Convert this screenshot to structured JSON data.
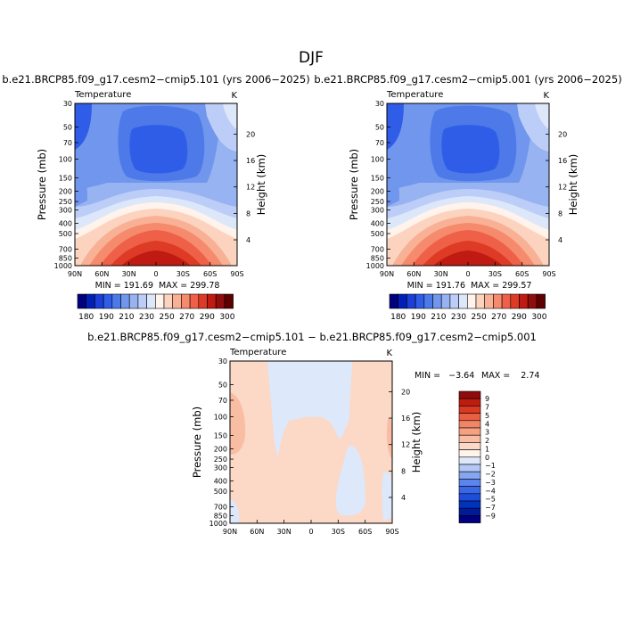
{
  "figure": {
    "title": "DJF"
  },
  "colors": {
    "abs_scale": [
      "#00007f",
      "#0020b5",
      "#1c3fd9",
      "#2f5de8",
      "#4d7ae8",
      "#7096ed",
      "#98b3f2",
      "#bccdf7",
      "#dde7fa",
      "#fff3eb",
      "#fcd3be",
      "#f9b195",
      "#f58a6d",
      "#ee6148",
      "#de3b27",
      "#bf1b12",
      "#8f0d0c",
      "#5e0000"
    ],
    "diff_scale": [
      "#00007f",
      "#001a99",
      "#0033bb",
      "#1f4ddb",
      "#3a66e8",
      "#5b84ec",
      "#87a6f1",
      "#b3c8f5",
      "#dde8fa",
      "#fff3eb",
      "#fcd8c6",
      "#f9bda3",
      "#f6a182",
      "#f28566",
      "#ea5f40",
      "#d93a21",
      "#bd1d0f",
      "#900c0c"
    ]
  },
  "chart_data": [
    {
      "type": "heatmap",
      "title": "b.e21.BRCP85.f09_g17.cesm2−cmip5.101 (yrs 2006−2025)",
      "subtitle": "Temperature",
      "units": "K",
      "xlabel": "",
      "ylabel": "Pressure (mb)",
      "y2label": "Height (km)",
      "x_ticks": [
        "90N",
        "60N",
        "30N",
        "0",
        "30S",
        "60S",
        "90S"
      ],
      "y_ticks": [
        "30",
        "50",
        "70",
        "100",
        "150",
        "200",
        "250",
        "300",
        "400",
        "500",
        "700",
        "850",
        "1000"
      ],
      "y2_ticks": [
        "20",
        "16",
        "12",
        "8",
        "4"
      ],
      "min_label": "MIN = 191.69",
      "max_label": "MAX = 299.78",
      "min": 191.69,
      "max": 299.78,
      "colorbar_labels": [
        "180",
        "190",
        "210",
        "230",
        "250",
        "270",
        "290",
        "300"
      ]
    },
    {
      "type": "heatmap",
      "title": "b.e21.BRCP85.f09_g17.cesm2−cmip5.001 (yrs 2006−2025)",
      "subtitle": "Temperature",
      "units": "K",
      "xlabel": "",
      "ylabel": "Pressure (mb)",
      "y2label": "Height (km)",
      "x_ticks": [
        "90N",
        "60N",
        "30N",
        "0",
        "30S",
        "60S",
        "90S"
      ],
      "y_ticks": [
        "30",
        "50",
        "70",
        "100",
        "150",
        "200",
        "250",
        "300",
        "400",
        "500",
        "700",
        "850",
        "1000"
      ],
      "y2_ticks": [
        "20",
        "16",
        "12",
        "8",
        "4"
      ],
      "min_label": "MIN = 191.76",
      "max_label": "MAX = 299.57",
      "min": 191.76,
      "max": 299.57,
      "colorbar_labels": [
        "180",
        "190",
        "210",
        "230",
        "250",
        "270",
        "290",
        "300"
      ]
    },
    {
      "type": "heatmap",
      "title": "b.e21.BRCP85.f09_g17.cesm2−cmip5.101 − b.e21.BRCP85.f09_g17.cesm2−cmip5.001",
      "subtitle": "Temperature",
      "units": "K",
      "xlabel": "",
      "ylabel": "Pressure (mb)",
      "y2label": "Height (km)",
      "x_ticks": [
        "90N",
        "60N",
        "30N",
        "0",
        "30S",
        "60S",
        "90S"
      ],
      "y_ticks": [
        "30",
        "50",
        "70",
        "100",
        "150",
        "200",
        "250",
        "300",
        "400",
        "500",
        "700",
        "850",
        "1000"
      ],
      "y2_ticks": [
        "20",
        "16",
        "12",
        "8",
        "4"
      ],
      "min_label": "MIN =   −3.64",
      "max_label": "MAX =    2.74",
      "min": -3.64,
      "max": 2.74,
      "colorbar_labels": [
        "9",
        "7",
        "5",
        "4",
        "3",
        "2",
        "1",
        "0",
        "−1",
        "−2",
        "−3",
        "−4",
        "−5",
        "−7",
        "−9"
      ]
    }
  ]
}
